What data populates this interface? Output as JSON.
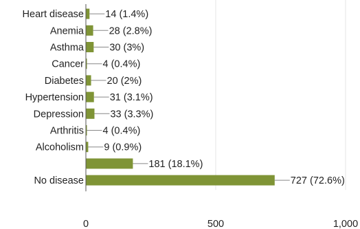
{
  "chart_data": {
    "type": "bar",
    "orientation": "horizontal",
    "categories": [
      "Heart disease",
      "Anemia",
      "Asthma",
      "Cancer",
      "Diabetes",
      "Hypertension",
      "Depression",
      "Arthritis",
      "Alcoholism",
      "",
      "No disease"
    ],
    "values": [
      14,
      28,
      30,
      4,
      20,
      31,
      33,
      4,
      9,
      181,
      727
    ],
    "data_labels": [
      "14 (1.4%)",
      "28 (2.8%)",
      "30 (3%)",
      "4 (0.4%)",
      "20 (2%)",
      "31 (3.1%)",
      "33 (3.3%)",
      "4 (0.4%)",
      "9 (0.9%)",
      "181 (18.1%)",
      "727 (72.6%)"
    ],
    "xlim": [
      0,
      1000
    ],
    "x_ticks": [
      0,
      500,
      1000
    ],
    "x_tick_labels": [
      "0",
      "500",
      "1,000"
    ],
    "grid": true,
    "bar_color": "#7f9436",
    "title": "",
    "xlabel": "",
    "ylabel": ""
  }
}
